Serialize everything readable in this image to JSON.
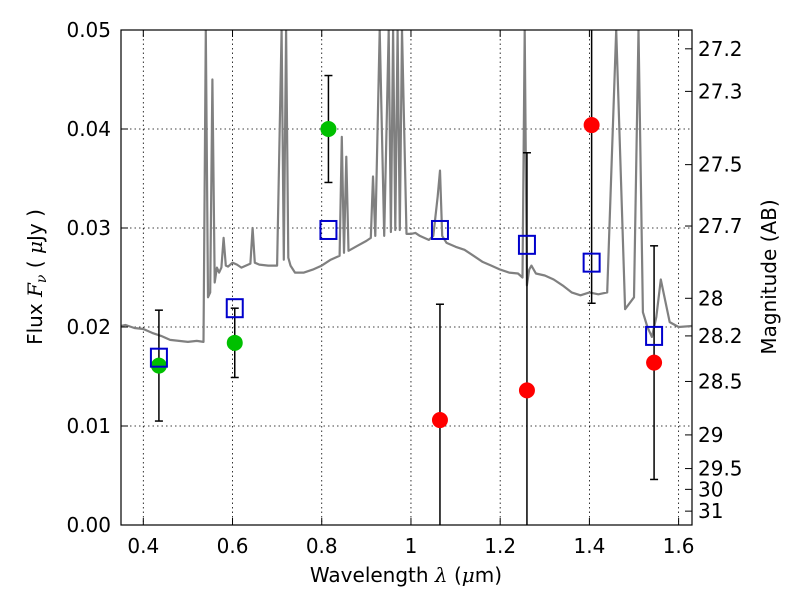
{
  "chart_data": {
    "type": "scatter",
    "xlabel": "Wavelength  λ (μm)",
    "ylabel": "Flux  F_ν  ( μJy )",
    "ylabel_right": "Magnitude (AB)",
    "xlim": [
      0.35,
      1.63
    ],
    "ylim": [
      0.0,
      0.05
    ],
    "grid": true,
    "x_ticks": [
      0.4,
      0.6,
      0.8,
      1.0,
      1.2,
      1.4,
      1.6
    ],
    "x_tick_labels": [
      "0.4",
      "0.6",
      "0.8",
      "1",
      "1.2",
      "1.4",
      "1.6"
    ],
    "y_ticks": [
      0.0,
      0.01,
      0.02,
      0.03,
      0.04,
      0.05
    ],
    "y_tick_labels": [
      "0.00",
      "0.01",
      "0.02",
      "0.03",
      "0.04",
      "0.05"
    ],
    "right_ticks": [
      {
        "label": "27.2",
        "flux": 0.0481
      },
      {
        "label": "27.3",
        "flux": 0.0438
      },
      {
        "label": "27.5",
        "flux": 0.0364
      },
      {
        "label": "27.7",
        "flux": 0.0302
      },
      {
        "label": "28",
        "flux": 0.0229
      },
      {
        "label": "28.2",
        "flux": 0.0191
      },
      {
        "label": "28.5",
        "flux": 0.0145
      },
      {
        "label": "29",
        "flux": 0.0091
      },
      {
        "label": "29.5",
        "flux": 0.0057
      },
      {
        "label": "30",
        "flux": 0.0036
      },
      {
        "label": "31",
        "flux": 0.0014
      }
    ],
    "series": [
      {
        "kind": "line",
        "color": "#808080",
        "x": [
          0.35,
          0.36,
          0.38,
          0.4,
          0.42,
          0.44,
          0.46,
          0.48,
          0.5,
          0.52,
          0.535,
          0.54,
          0.545,
          0.55,
          0.555,
          0.56,
          0.565,
          0.57,
          0.575,
          0.58,
          0.585,
          0.59,
          0.6,
          0.61,
          0.62,
          0.63,
          0.64,
          0.645,
          0.65,
          0.66,
          0.68,
          0.7,
          0.71,
          0.715,
          0.72,
          0.725,
          0.73,
          0.74,
          0.76,
          0.78,
          0.8,
          0.82,
          0.84,
          0.845,
          0.85,
          0.855,
          0.86,
          0.88,
          0.9,
          0.91,
          0.915,
          0.92,
          0.93,
          0.94,
          0.95,
          0.955,
          0.96,
          0.965,
          0.97,
          0.975,
          0.98,
          0.99,
          1.0,
          1.01,
          1.02,
          1.03,
          1.04,
          1.05,
          1.06,
          1.065,
          1.07,
          1.08,
          1.1,
          1.12,
          1.14,
          1.16,
          1.18,
          1.2,
          1.22,
          1.24,
          1.25,
          1.255,
          1.26,
          1.265,
          1.27,
          1.28,
          1.3,
          1.32,
          1.34,
          1.36,
          1.38,
          1.4,
          1.42,
          1.44,
          1.46,
          1.48,
          1.5,
          1.51,
          1.52,
          1.53,
          1.54,
          1.55,
          1.56,
          1.58,
          1.6,
          1.63
        ],
        "values": [
          0.0201,
          0.0202,
          0.0199,
          0.0198,
          0.0194,
          0.0191,
          0.0187,
          0.0186,
          0.0185,
          0.0186,
          0.0185,
          0.05,
          0.023,
          0.0235,
          0.045,
          0.0245,
          0.026,
          0.0255,
          0.026,
          0.029,
          0.0262,
          0.0261,
          0.0265,
          0.0263,
          0.026,
          0.0262,
          0.0264,
          0.03,
          0.0265,
          0.0263,
          0.0262,
          0.0262,
          0.05,
          0.0268,
          0.05,
          0.027,
          0.0262,
          0.0255,
          0.0255,
          0.0258,
          0.0262,
          0.0268,
          0.0272,
          0.0392,
          0.0275,
          0.0372,
          0.0277,
          0.0282,
          0.0287,
          0.029,
          0.0352,
          0.0292,
          0.05,
          0.0292,
          0.05,
          0.0296,
          0.05,
          0.0298,
          0.05,
          0.0298,
          0.05,
          0.0294,
          0.0294,
          0.0295,
          0.0292,
          0.029,
          0.0288,
          0.0292,
          0.0332,
          0.0358,
          0.0292,
          0.0285,
          0.0281,
          0.0278,
          0.0272,
          0.0266,
          0.0262,
          0.0258,
          0.0255,
          0.0254,
          0.025,
          0.05,
          0.0242,
          0.0258,
          0.0262,
          0.0254,
          0.0252,
          0.0248,
          0.0242,
          0.0235,
          0.0232,
          0.0235,
          0.0233,
          0.0235,
          0.05,
          0.0218,
          0.023,
          0.05,
          0.0215,
          0.02,
          0.019,
          0.021,
          0.0248,
          0.0205,
          0.02,
          0.0201
        ]
      },
      {
        "kind": "points",
        "marker": "circle",
        "color": "#00c000",
        "x": [
          0.435,
          0.605,
          0.815
        ],
        "values": [
          0.0161,
          0.0184,
          0.04
        ],
        "err_low": [
          0.0105,
          0.0149,
          0.0346
        ],
        "err_high": [
          0.0217,
          0.0219,
          0.0454
        ]
      },
      {
        "kind": "points",
        "marker": "circle",
        "color": "#ff0000",
        "x": [
          1.065,
          1.26,
          1.405,
          1.545
        ],
        "values": [
          0.0106,
          0.0136,
          0.0404,
          0.0164
        ],
        "err_low": [
          0.0,
          0.0,
          0.0224,
          0.0046
        ],
        "err_high": [
          0.0223,
          0.0376,
          0.05,
          0.0282
        ]
      },
      {
        "kind": "points",
        "marker": "square",
        "color": "#0000cc",
        "x": [
          0.435,
          0.605,
          0.815,
          1.065,
          1.26,
          1.405,
          1.545
        ],
        "values": [
          0.0169,
          0.0219,
          0.0298,
          0.0298,
          0.0283,
          0.0265,
          0.0191
        ]
      }
    ]
  }
}
